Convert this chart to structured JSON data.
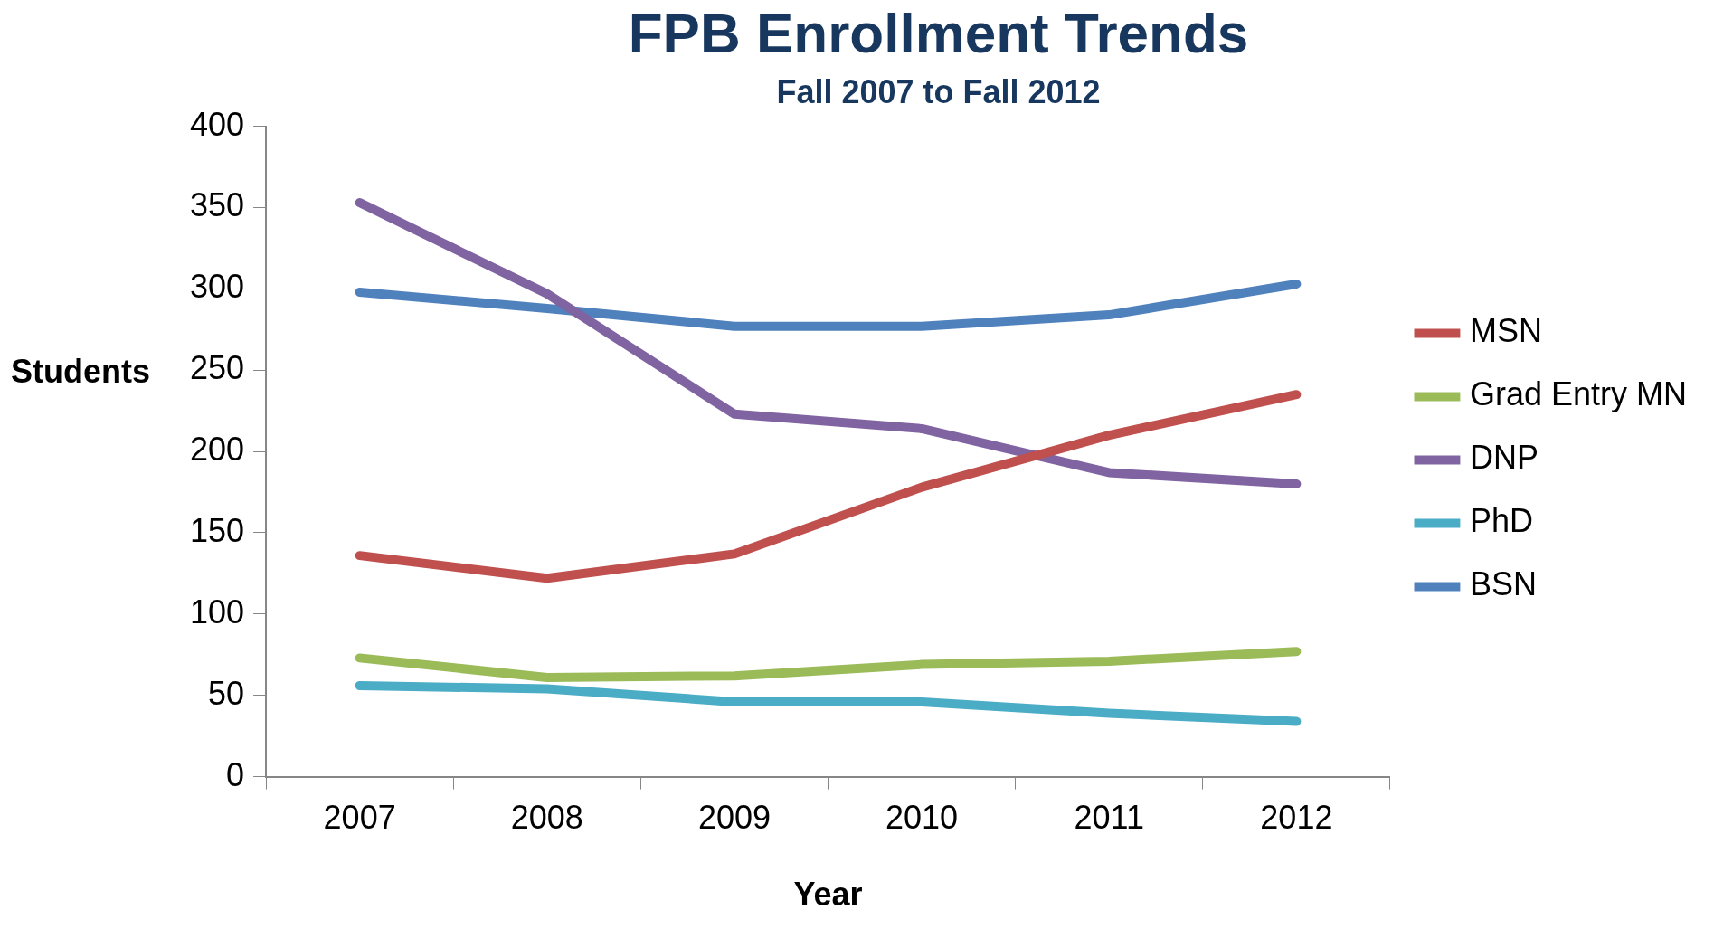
{
  "chart_data": {
    "type": "line",
    "title": "FPB Enrollment Trends",
    "subtitle": "Fall 2007 to Fall 2012",
    "xlabel": "Year",
    "ylabel": "Students",
    "categories": [
      "2007",
      "2008",
      "2009",
      "2010",
      "2011",
      "2012"
    ],
    "series": [
      {
        "name": "MSN",
        "color": "#c0504d",
        "values": [
          136,
          122,
          137,
          178,
          210,
          235
        ]
      },
      {
        "name": "Grad Entry MN",
        "color": "#9bbb59",
        "values": [
          73,
          61,
          62,
          69,
          71,
          77
        ]
      },
      {
        "name": "DNP",
        "color": "#8064a2",
        "values": [
          353,
          297,
          223,
          214,
          187,
          180
        ]
      },
      {
        "name": "PhD",
        "color": "#4bacc6",
        "values": [
          56,
          54,
          46,
          46,
          39,
          34
        ]
      },
      {
        "name": "BSN",
        "color": "#4f81bd",
        "values": [
          298,
          288,
          277,
          277,
          284,
          303
        ]
      }
    ],
    "ylim": [
      0,
      400
    ],
    "yticks": [
      0,
      50,
      100,
      150,
      200,
      250,
      300,
      350,
      400
    ],
    "grid": false,
    "legend": "right",
    "marker": "none",
    "line_style": "solid"
  }
}
